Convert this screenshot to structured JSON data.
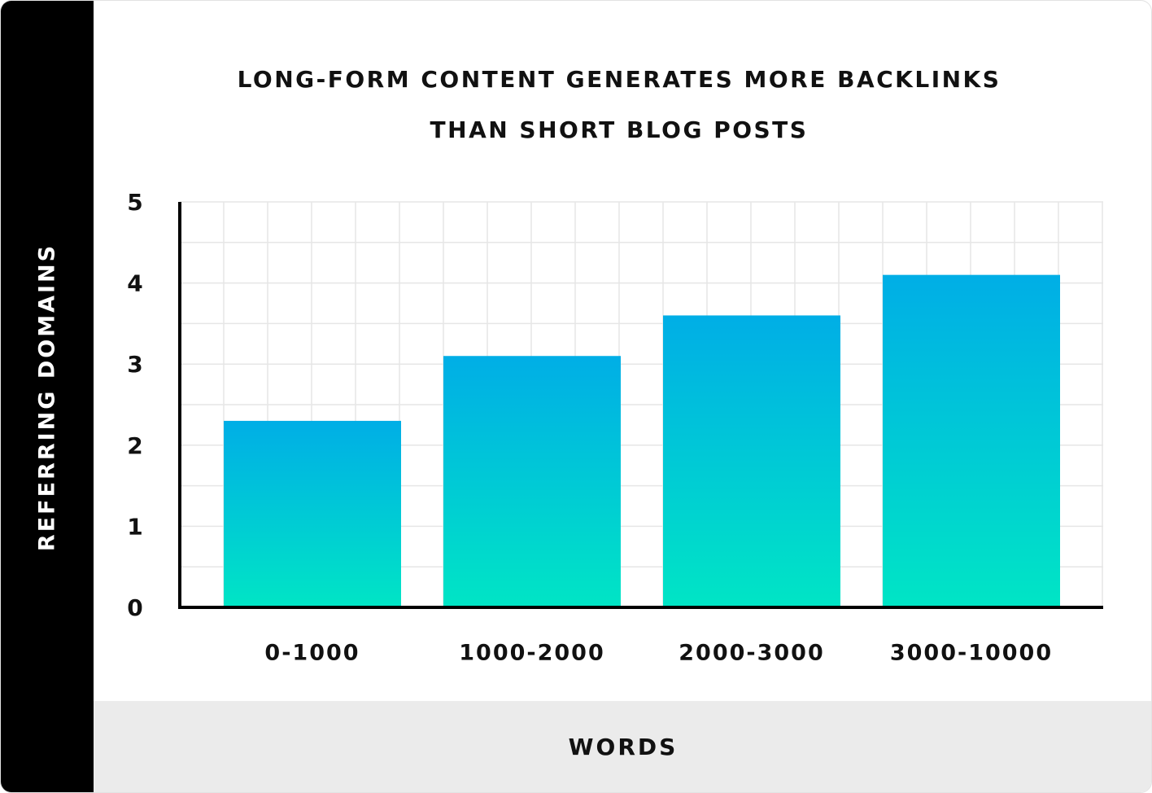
{
  "chart_data": {
    "type": "bar",
    "title": "LONG-FORM CONTENT GENERATES MORE BACKLINKS THAN SHORT BLOG POSTS",
    "x_label": "WORDS",
    "y_label": "REFERRING DOMAINS",
    "categories": [
      "0-1000",
      "1000-2000",
      "2000-3000",
      "3000-10000"
    ],
    "values": [
      2.3,
      3.1,
      3.6,
      4.1
    ],
    "color": [
      "#00aee6",
      "#00e5c5"
    ],
    "ylim": [
      0,
      5
    ],
    "yticks": [
      0,
      1,
      2,
      3,
      4,
      5
    ],
    "grid": true
  }
}
